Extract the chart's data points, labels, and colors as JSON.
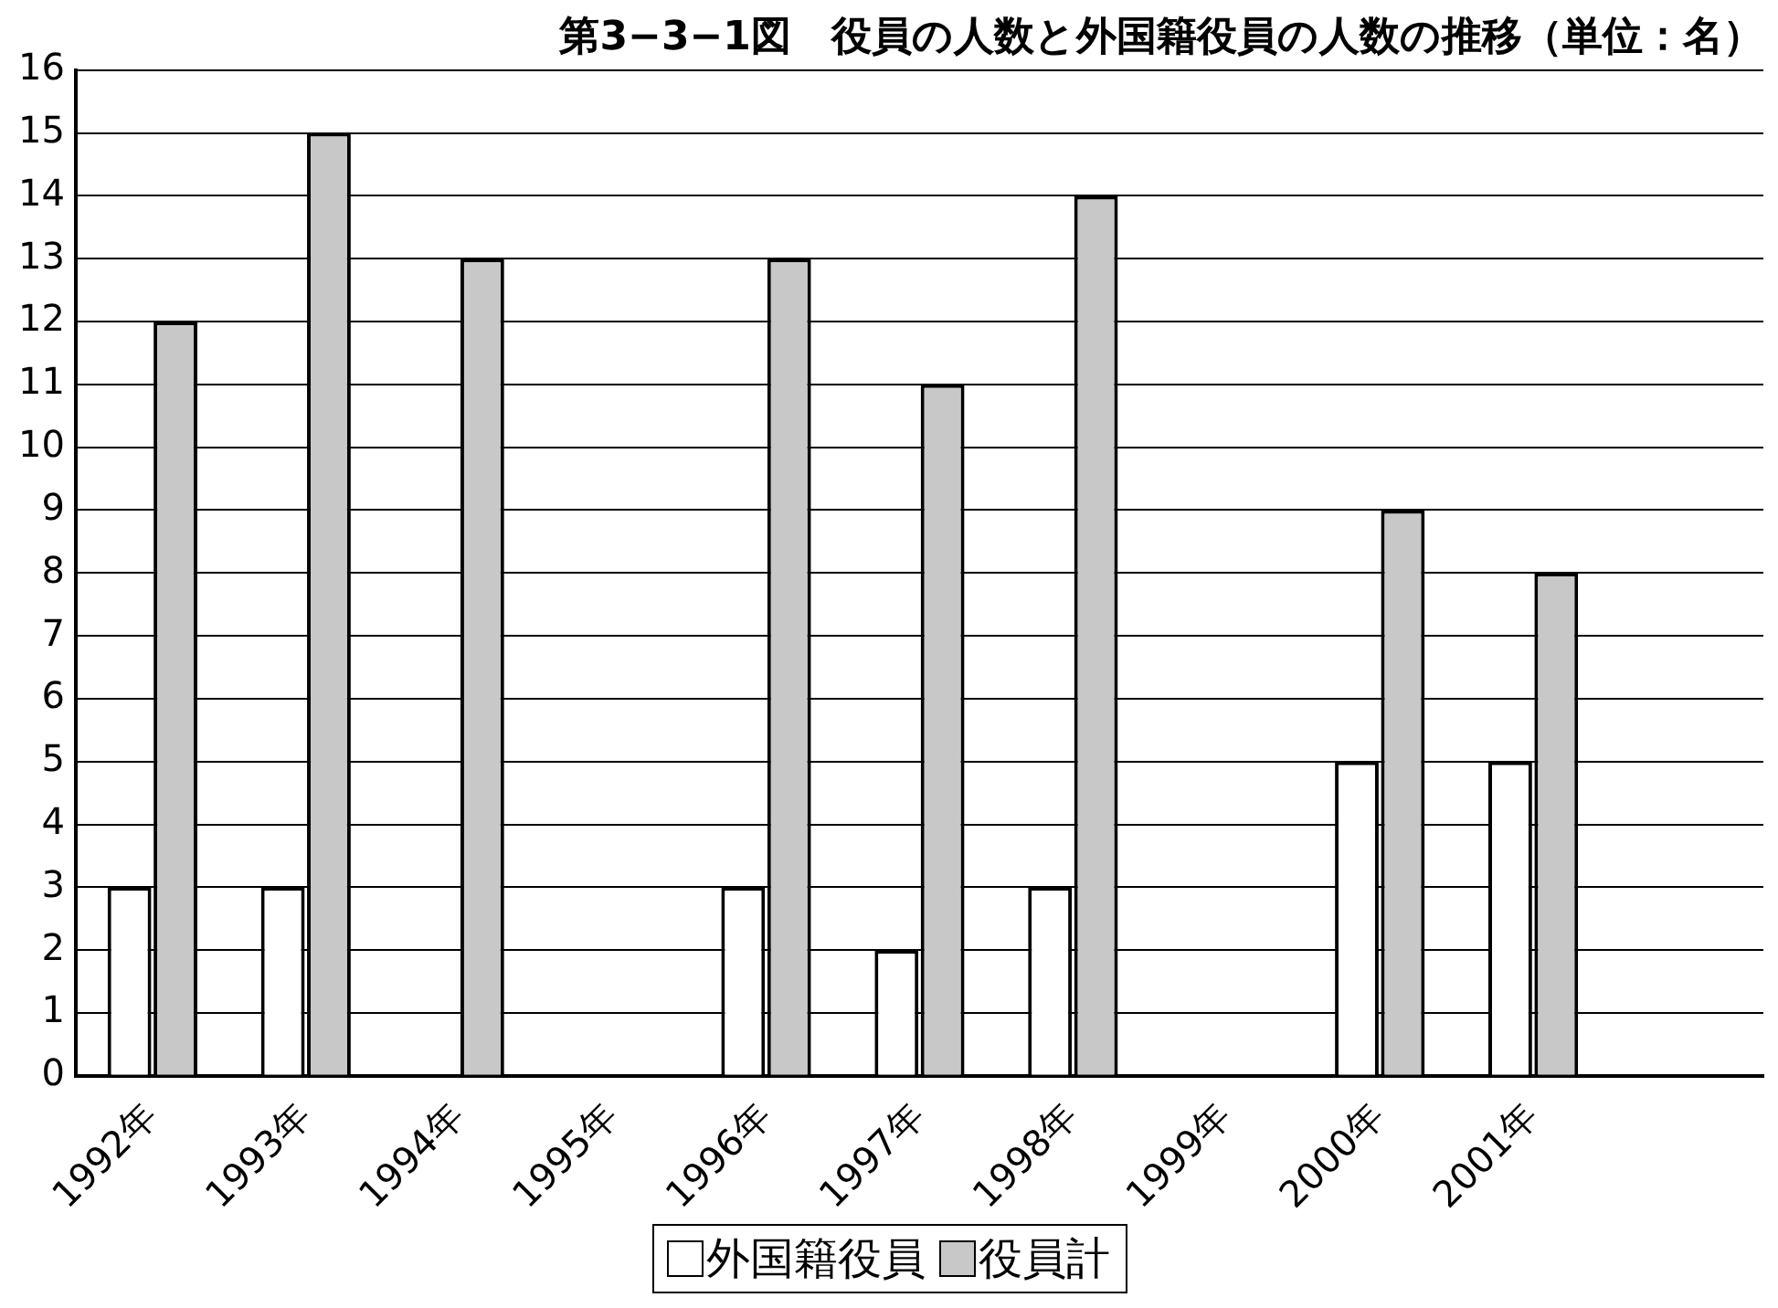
{
  "chart_data": {
    "type": "bar",
    "title": "第3−3−1図　役員の人数と外国籍役員の人数の推移（単位：名）",
    "categories": [
      "1992年",
      "1993年",
      "1994年",
      "1995年",
      "1996年",
      "1997年",
      "1998年",
      "1999年",
      "2000年",
      "2001年",
      null
    ],
    "series": [
      {
        "name": "外国籍役員",
        "color": "#ffffff",
        "values": [
          3,
          3,
          null,
          null,
          3,
          2,
          3,
          null,
          5,
          5,
          null
        ]
      },
      {
        "name": "役員計",
        "color": "#c8c8c8",
        "values": [
          12,
          15,
          13,
          null,
          13,
          11,
          14,
          null,
          9,
          8,
          null
        ]
      }
    ],
    "ylim": [
      0,
      16
    ],
    "yticks": [
      0,
      1,
      2,
      3,
      4,
      5,
      6,
      7,
      8,
      9,
      10,
      11,
      12,
      13,
      14,
      15,
      16
    ],
    "grid": "y",
    "legend": "bottom"
  }
}
